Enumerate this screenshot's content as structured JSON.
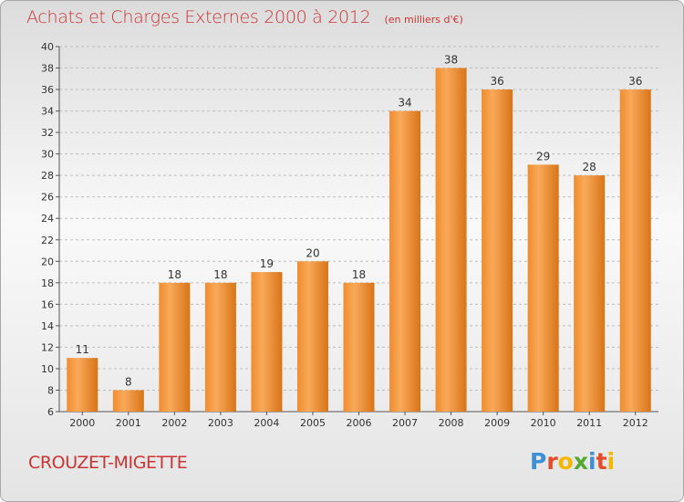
{
  "chart_data": {
    "type": "bar",
    "title": "Achats et Charges Externes 2000 à 2012",
    "unit": "(en milliers d'€)",
    "categories": [
      "2000",
      "2001",
      "2002",
      "2003",
      "2004",
      "2005",
      "2006",
      "2007",
      "2008",
      "2009",
      "2010",
      "2011",
      "2012"
    ],
    "values": [
      11,
      8,
      18,
      18,
      19,
      20,
      18,
      34,
      38,
      36,
      29,
      28,
      36
    ],
    "ylim": [
      6,
      40
    ],
    "yticks": [
      6,
      8,
      10,
      12,
      14,
      16,
      18,
      20,
      22,
      24,
      26,
      28,
      30,
      32,
      34,
      36,
      38,
      40
    ],
    "grid": true,
    "bar_color": "#f08c2e",
    "bar_highlight": "#f9a95a",
    "bar_shadow": "#d87418"
  },
  "commune": "CROUZET-MIGETTE",
  "brand": {
    "letters": [
      "P",
      "r",
      "o",
      "x",
      "i",
      "t",
      "i"
    ],
    "colors": [
      "#3d8fd6",
      "#e64b2a",
      "#f2b800",
      "#55a832",
      "#3d8fd6",
      "#e64b2a",
      "#f2b800"
    ]
  },
  "colors": {
    "title": "#cc3333",
    "axis_text": "#333333",
    "grid": "#bdbdbd"
  }
}
